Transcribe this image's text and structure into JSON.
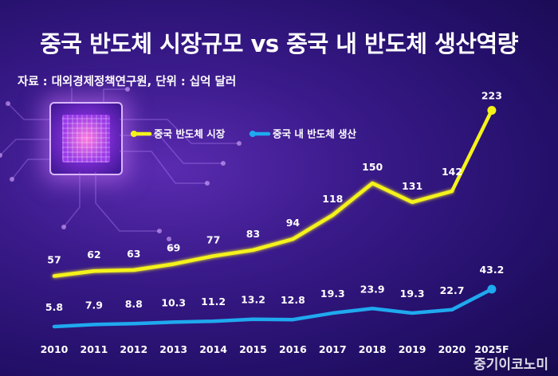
{
  "title": "중국 반도체 시장규모 vs 중국 내 반도체 생산역량",
  "source": "자료 : 대외경제정책연구원, 단위 : 십억 달러",
  "watermark": "중기이코노미",
  "colors": {
    "market": "#f5f21a",
    "production": "#1fa9ef"
  },
  "chart_data": {
    "type": "line",
    "categories": [
      "2010",
      "2011",
      "2012",
      "2013",
      "2014",
      "2015",
      "2016",
      "2017",
      "2018",
      "2019",
      "2020",
      "2025F"
    ],
    "series": [
      {
        "name": "중국 반도체 시장",
        "values": [
          57,
          62,
          63,
          69,
          77,
          83,
          94,
          118,
          150,
          131,
          142,
          223
        ],
        "labels": [
          "57",
          "62",
          "63",
          "69",
          "77",
          "83",
          "94",
          "118",
          "150",
          "131",
          "142",
          "223"
        ]
      },
      {
        "name": "중국 내 반도체 생산",
        "values": [
          5.8,
          7.9,
          8.8,
          10.3,
          11.2,
          13.2,
          12.8,
          19.3,
          23.9,
          19.3,
          22.7,
          43.2
        ],
        "labels": [
          "5.8",
          "7.9",
          "8.8",
          "10.3",
          "11.2",
          "13.2",
          "12.8",
          "19.3",
          "23.9",
          "19.3",
          "22.7",
          "43.2"
        ]
      }
    ],
    "legend": "top-left"
  }
}
